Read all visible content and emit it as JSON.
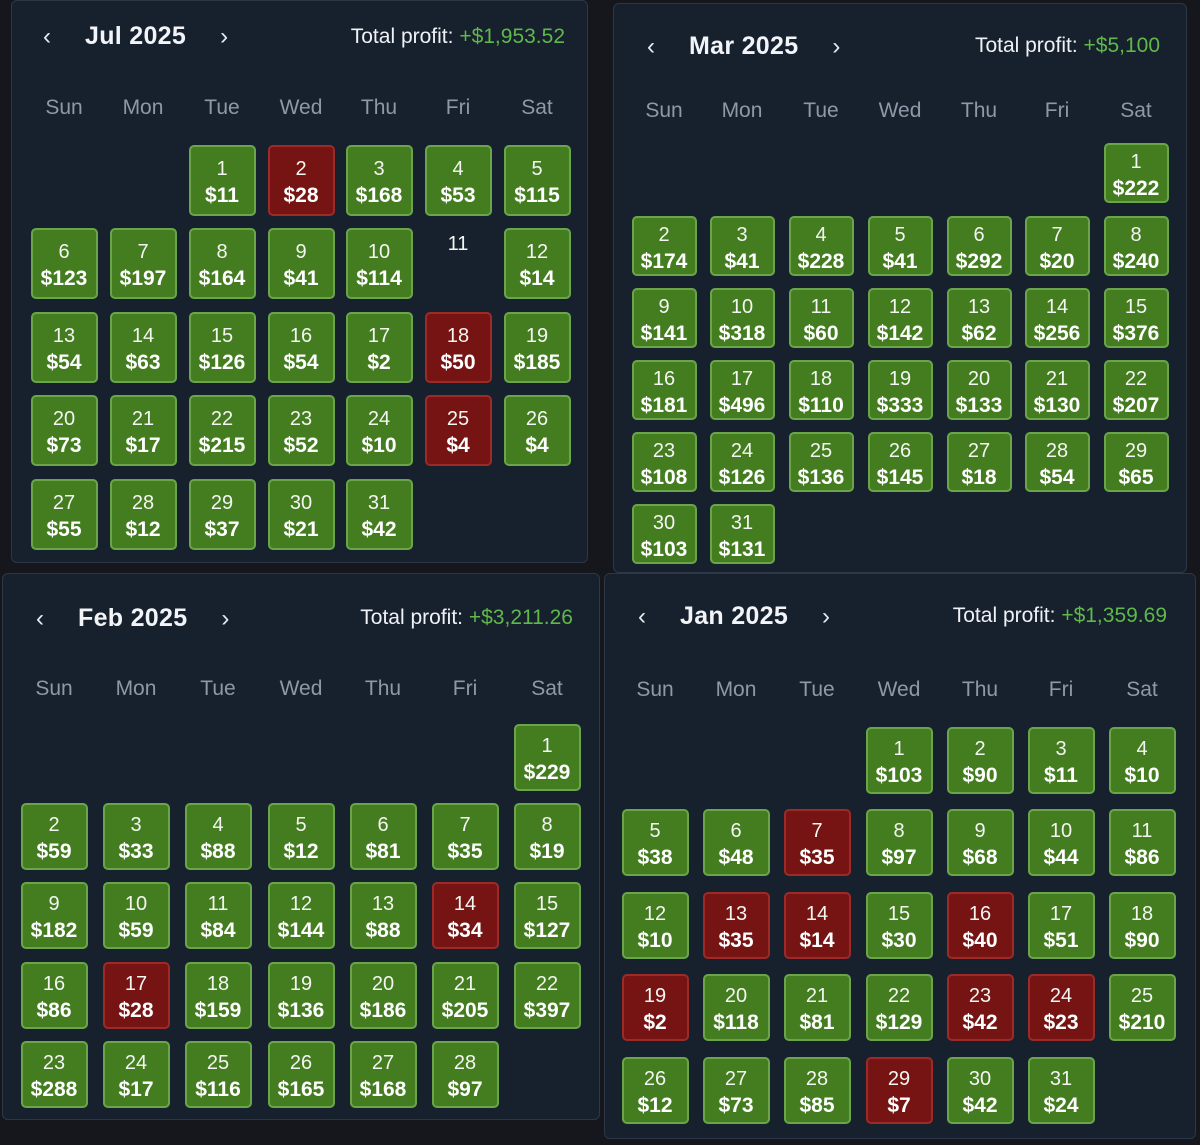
{
  "profit_label": "Total profit:",
  "weekdays": [
    "Sun",
    "Mon",
    "Tue",
    "Wed",
    "Thu",
    "Fri",
    "Sat"
  ],
  "colors": {
    "positive": "#447c20",
    "negative": "#761414",
    "profit_text": "#5fb84a",
    "panel": "#17212e"
  },
  "icons": {
    "prev": "chevron-left-icon",
    "next": "chevron-right-icon"
  },
  "calendars": [
    {
      "title": "Jul 2025",
      "total": "+$1,953.52",
      "start_dow": 2,
      "days": [
        {
          "d": "1",
          "v": "$11",
          "s": "pos"
        },
        {
          "d": "2",
          "v": "$28",
          "s": "neg"
        },
        {
          "d": "3",
          "v": "$168",
          "s": "pos"
        },
        {
          "d": "4",
          "v": "$53",
          "s": "pos"
        },
        {
          "d": "5",
          "v": "$115",
          "s": "pos"
        },
        {
          "d": "6",
          "v": "$123",
          "s": "pos"
        },
        {
          "d": "7",
          "v": "$197",
          "s": "pos"
        },
        {
          "d": "8",
          "v": "$164",
          "s": "pos"
        },
        {
          "d": "9",
          "v": "$41",
          "s": "pos"
        },
        {
          "d": "10",
          "v": "$114",
          "s": "pos"
        },
        {
          "d": "11",
          "v": "",
          "s": "empty"
        },
        {
          "d": "12",
          "v": "$14",
          "s": "pos"
        },
        {
          "d": "13",
          "v": "$54",
          "s": "pos"
        },
        {
          "d": "14",
          "v": "$63",
          "s": "pos"
        },
        {
          "d": "15",
          "v": "$126",
          "s": "pos"
        },
        {
          "d": "16",
          "v": "$54",
          "s": "pos"
        },
        {
          "d": "17",
          "v": "$2",
          "s": "pos"
        },
        {
          "d": "18",
          "v": "$50",
          "s": "neg"
        },
        {
          "d": "19",
          "v": "$185",
          "s": "pos"
        },
        {
          "d": "20",
          "v": "$73",
          "s": "pos"
        },
        {
          "d": "21",
          "v": "$17",
          "s": "pos"
        },
        {
          "d": "22",
          "v": "$215",
          "s": "pos"
        },
        {
          "d": "23",
          "v": "$52",
          "s": "pos"
        },
        {
          "d": "24",
          "v": "$10",
          "s": "pos"
        },
        {
          "d": "25",
          "v": "$4",
          "s": "neg"
        },
        {
          "d": "26",
          "v": "$4",
          "s": "pos"
        },
        {
          "d": "27",
          "v": "$55",
          "s": "pos"
        },
        {
          "d": "28",
          "v": "$12",
          "s": "pos"
        },
        {
          "d": "29",
          "v": "$37",
          "s": "pos"
        },
        {
          "d": "30",
          "v": "$21",
          "s": "pos"
        },
        {
          "d": "31",
          "v": "$42",
          "s": "pos"
        }
      ]
    },
    {
      "title": "Mar 2025",
      "total": "+$5,100",
      "start_dow": 6,
      "days": [
        {
          "d": "1",
          "v": "$222",
          "s": "pos"
        },
        {
          "d": "2",
          "v": "$174",
          "s": "pos"
        },
        {
          "d": "3",
          "v": "$41",
          "s": "pos"
        },
        {
          "d": "4",
          "v": "$228",
          "s": "pos"
        },
        {
          "d": "5",
          "v": "$41",
          "s": "pos"
        },
        {
          "d": "6",
          "v": "$292",
          "s": "pos"
        },
        {
          "d": "7",
          "v": "$20",
          "s": "pos"
        },
        {
          "d": "8",
          "v": "$240",
          "s": "pos"
        },
        {
          "d": "9",
          "v": "$141",
          "s": "pos"
        },
        {
          "d": "10",
          "v": "$318",
          "s": "pos"
        },
        {
          "d": "11",
          "v": "$60",
          "s": "pos"
        },
        {
          "d": "12",
          "v": "$142",
          "s": "pos"
        },
        {
          "d": "13",
          "v": "$62",
          "s": "pos"
        },
        {
          "d": "14",
          "v": "$256",
          "s": "pos"
        },
        {
          "d": "15",
          "v": "$376",
          "s": "pos"
        },
        {
          "d": "16",
          "v": "$181",
          "s": "pos"
        },
        {
          "d": "17",
          "v": "$496",
          "s": "pos"
        },
        {
          "d": "18",
          "v": "$110",
          "s": "pos"
        },
        {
          "d": "19",
          "v": "$333",
          "s": "pos"
        },
        {
          "d": "20",
          "v": "$133",
          "s": "pos"
        },
        {
          "d": "21",
          "v": "$130",
          "s": "pos"
        },
        {
          "d": "22",
          "v": "$207",
          "s": "pos"
        },
        {
          "d": "23",
          "v": "$108",
          "s": "pos"
        },
        {
          "d": "24",
          "v": "$126",
          "s": "pos"
        },
        {
          "d": "25",
          "v": "$136",
          "s": "pos"
        },
        {
          "d": "26",
          "v": "$145",
          "s": "pos"
        },
        {
          "d": "27",
          "v": "$18",
          "s": "pos"
        },
        {
          "d": "28",
          "v": "$54",
          "s": "pos"
        },
        {
          "d": "29",
          "v": "$65",
          "s": "pos"
        },
        {
          "d": "30",
          "v": "$103",
          "s": "pos"
        },
        {
          "d": "31",
          "v": "$131",
          "s": "pos"
        }
      ]
    },
    {
      "title": "Feb 2025",
      "total": "+$3,211.26",
      "start_dow": 6,
      "days": [
        {
          "d": "1",
          "v": "$229",
          "s": "pos"
        },
        {
          "d": "2",
          "v": "$59",
          "s": "pos"
        },
        {
          "d": "3",
          "v": "$33",
          "s": "pos"
        },
        {
          "d": "4",
          "v": "$88",
          "s": "pos"
        },
        {
          "d": "5",
          "v": "$12",
          "s": "pos"
        },
        {
          "d": "6",
          "v": "$81",
          "s": "pos"
        },
        {
          "d": "7",
          "v": "$35",
          "s": "pos"
        },
        {
          "d": "8",
          "v": "$19",
          "s": "pos"
        },
        {
          "d": "9",
          "v": "$182",
          "s": "pos"
        },
        {
          "d": "10",
          "v": "$59",
          "s": "pos"
        },
        {
          "d": "11",
          "v": "$84",
          "s": "pos"
        },
        {
          "d": "12",
          "v": "$144",
          "s": "pos"
        },
        {
          "d": "13",
          "v": "$88",
          "s": "pos"
        },
        {
          "d": "14",
          "v": "$34",
          "s": "neg"
        },
        {
          "d": "15",
          "v": "$127",
          "s": "pos"
        },
        {
          "d": "16",
          "v": "$86",
          "s": "pos"
        },
        {
          "d": "17",
          "v": "$28",
          "s": "neg"
        },
        {
          "d": "18",
          "v": "$159",
          "s": "pos"
        },
        {
          "d": "19",
          "v": "$136",
          "s": "pos"
        },
        {
          "d": "20",
          "v": "$186",
          "s": "pos"
        },
        {
          "d": "21",
          "v": "$205",
          "s": "pos"
        },
        {
          "d": "22",
          "v": "$397",
          "s": "pos"
        },
        {
          "d": "23",
          "v": "$288",
          "s": "pos"
        },
        {
          "d": "24",
          "v": "$17",
          "s": "pos"
        },
        {
          "d": "25",
          "v": "$116",
          "s": "pos"
        },
        {
          "d": "26",
          "v": "$165",
          "s": "pos"
        },
        {
          "d": "27",
          "v": "$168",
          "s": "pos"
        },
        {
          "d": "28",
          "v": "$97",
          "s": "pos"
        }
      ]
    },
    {
      "title": "Jan 2025",
      "total": "+$1,359.69",
      "start_dow": 3,
      "days": [
        {
          "d": "1",
          "v": "$103",
          "s": "pos"
        },
        {
          "d": "2",
          "v": "$90",
          "s": "pos"
        },
        {
          "d": "3",
          "v": "$11",
          "s": "pos"
        },
        {
          "d": "4",
          "v": "$10",
          "s": "pos"
        },
        {
          "d": "5",
          "v": "$38",
          "s": "pos"
        },
        {
          "d": "6",
          "v": "$48",
          "s": "pos"
        },
        {
          "d": "7",
          "v": "$35",
          "s": "neg"
        },
        {
          "d": "8",
          "v": "$97",
          "s": "pos"
        },
        {
          "d": "9",
          "v": "$68",
          "s": "pos"
        },
        {
          "d": "10",
          "v": "$44",
          "s": "pos"
        },
        {
          "d": "11",
          "v": "$86",
          "s": "pos"
        },
        {
          "d": "12",
          "v": "$10",
          "s": "pos"
        },
        {
          "d": "13",
          "v": "$35",
          "s": "neg"
        },
        {
          "d": "14",
          "v": "$14",
          "s": "neg"
        },
        {
          "d": "15",
          "v": "$30",
          "s": "pos"
        },
        {
          "d": "16",
          "v": "$40",
          "s": "neg"
        },
        {
          "d": "17",
          "v": "$51",
          "s": "pos"
        },
        {
          "d": "18",
          "v": "$90",
          "s": "pos"
        },
        {
          "d": "19",
          "v": "$2",
          "s": "neg"
        },
        {
          "d": "20",
          "v": "$118",
          "s": "pos"
        },
        {
          "d": "21",
          "v": "$81",
          "s": "pos"
        },
        {
          "d": "22",
          "v": "$129",
          "s": "pos"
        },
        {
          "d": "23",
          "v": "$42",
          "s": "neg"
        },
        {
          "d": "24",
          "v": "$23",
          "s": "neg"
        },
        {
          "d": "25",
          "v": "$210",
          "s": "pos"
        },
        {
          "d": "26",
          "v": "$12",
          "s": "pos"
        },
        {
          "d": "27",
          "v": "$73",
          "s": "pos"
        },
        {
          "d": "28",
          "v": "$85",
          "s": "pos"
        },
        {
          "d": "29",
          "v": "$7",
          "s": "neg"
        },
        {
          "d": "30",
          "v": "$42",
          "s": "pos"
        },
        {
          "d": "31",
          "v": "$24",
          "s": "pos"
        }
      ]
    }
  ]
}
